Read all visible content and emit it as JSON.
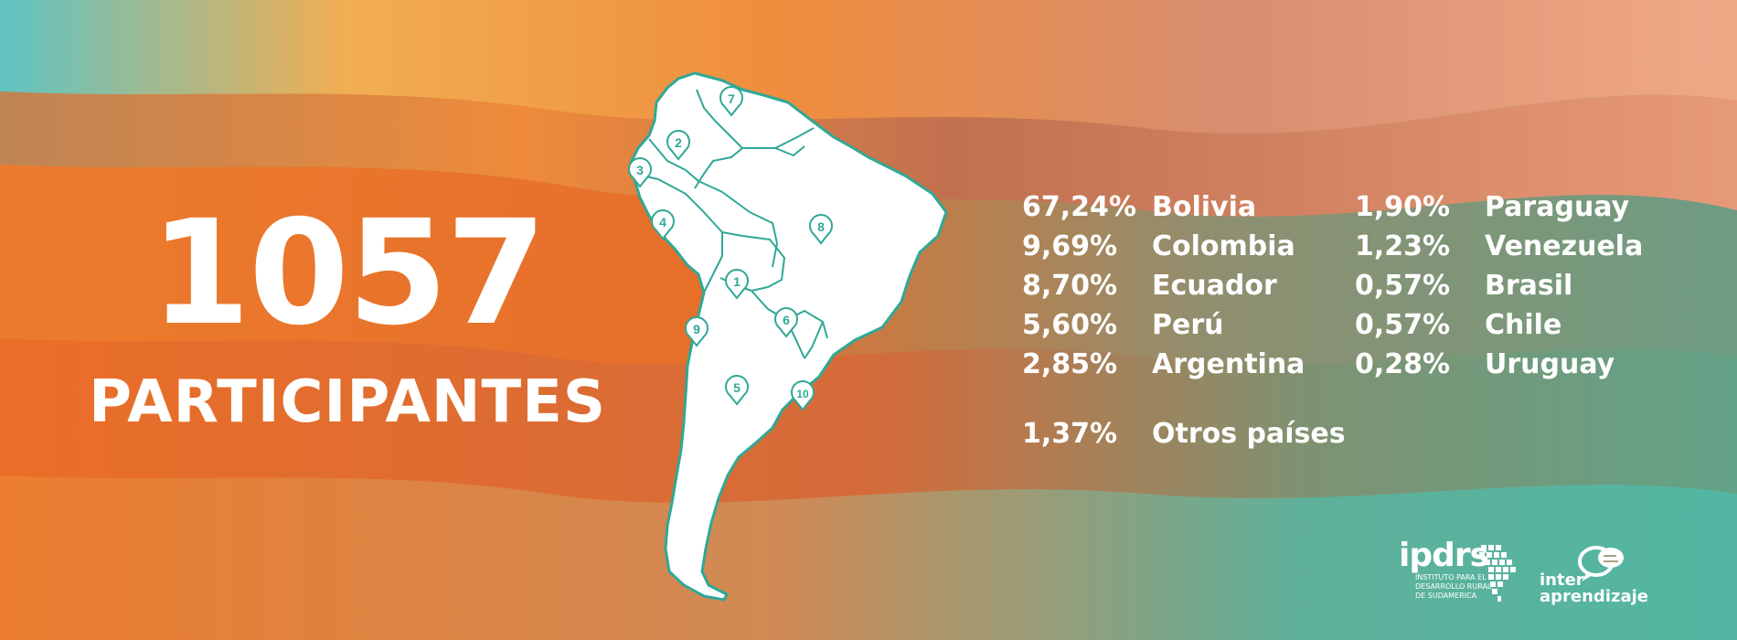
{
  "headline": {
    "number": "1057",
    "label": "PARTICIPANTES"
  },
  "colors": {
    "map_fill": "#ffffff",
    "map_border": "#2fa897",
    "text": "#ffffff"
  },
  "map_markers": [
    "1",
    "2",
    "3",
    "4",
    "5",
    "6",
    "7",
    "8",
    "9",
    "10"
  ],
  "stats_left": [
    {
      "pct": "67,24%",
      "country": "Bolivia"
    },
    {
      "pct": "9,69%",
      "country": "Colombia"
    },
    {
      "pct": "8,70%",
      "country": "Ecuador"
    },
    {
      "pct": "5,60%",
      "country": "Perú"
    },
    {
      "pct": "2,85%",
      "country": "Argentina"
    }
  ],
  "stats_right": [
    {
      "pct": "1,90%",
      "country": "Paraguay"
    },
    {
      "pct": "1,23%",
      "country": "Venezuela"
    },
    {
      "pct": "0,57%",
      "country": "Brasil"
    },
    {
      "pct": "0,57%",
      "country": "Chile"
    },
    {
      "pct": "0,28%",
      "country": "Uruguay"
    }
  ],
  "stats_other": {
    "pct": "1,37%",
    "country": "Otros países"
  },
  "logos": {
    "ipdrs_name": "ipdrs",
    "ipdrs_line1": "INSTITUTO PARA EL",
    "ipdrs_line2": "DESARROLLO RURAL",
    "ipdrs_line3": "DE SUDAMERICA",
    "inter_line1": "inter",
    "inter_line2": "aprendizaje"
  }
}
